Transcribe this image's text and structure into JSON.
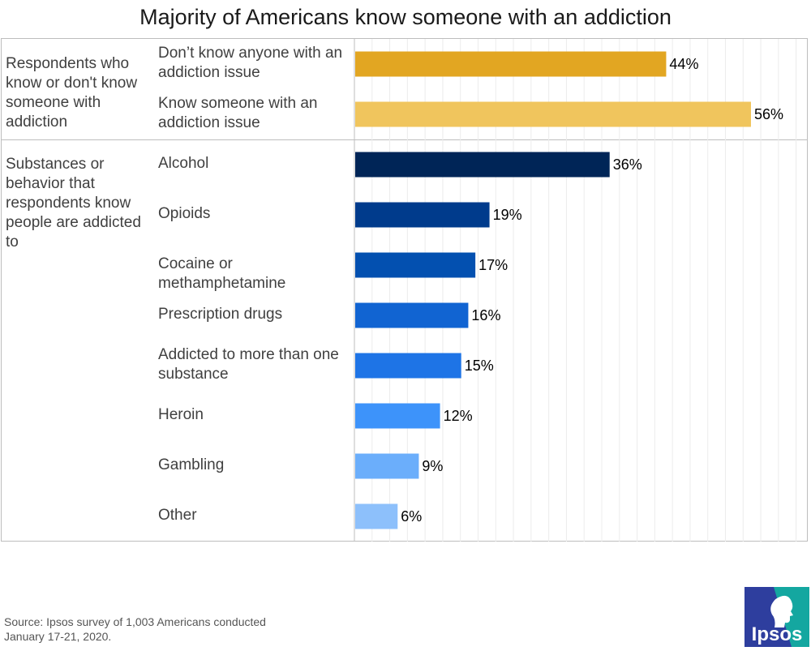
{
  "chart_data": {
    "type": "bar",
    "orientation": "horizontal",
    "title": "Majority of Americans know someone with an addiction",
    "xlim": [
      0,
      60
    ],
    "grid": true,
    "groups": [
      {
        "label": "Respondents who know or don't know someone with addiction",
        "categories": [
          {
            "label": "Don’t know anyone with an addiction issue",
            "value": 44,
            "value_label": "44%",
            "color": "#E2A622"
          },
          {
            "label": "Know someone with an addiction issue",
            "value": 56,
            "value_label": "56%",
            "color": "#F0C55D"
          }
        ]
      },
      {
        "label": "Substances or behavior that respondents know people are addicted to",
        "categories": [
          {
            "label": "Alcohol",
            "value": 36,
            "value_label": "36%",
            "color": "#002557"
          },
          {
            "label": "Opioids",
            "value": 19,
            "value_label": "19%",
            "color": "#003B8C"
          },
          {
            "label": "Cocaine or methamphetamine",
            "value": 17,
            "value_label": "17%",
            "color": "#0350B0"
          },
          {
            "label": "Prescription drugs",
            "value": 16,
            "value_label": "16%",
            "color": "#1164D2"
          },
          {
            "label": "Addicted to more than one substance",
            "value": 15,
            "value_label": "15%",
            "color": "#1E74E6"
          },
          {
            "label": "Heroin",
            "value": 12,
            "value_label": "12%",
            "color": "#3D93FA"
          },
          {
            "label": "Gambling",
            "value": 9,
            "value_label": "9%",
            "color": "#6BAEFB"
          },
          {
            "label": "Other",
            "value": 6,
            "value_label": "6%",
            "color": "#8DC0FB"
          }
        ]
      }
    ]
  },
  "source": "Source: Ipsos survey of 1,003 Americans conducted January 17-21, 2020.",
  "logo": {
    "text": "Ipsos",
    "color_blue": "#2E3E9E",
    "color_teal": "#14A7A0"
  }
}
